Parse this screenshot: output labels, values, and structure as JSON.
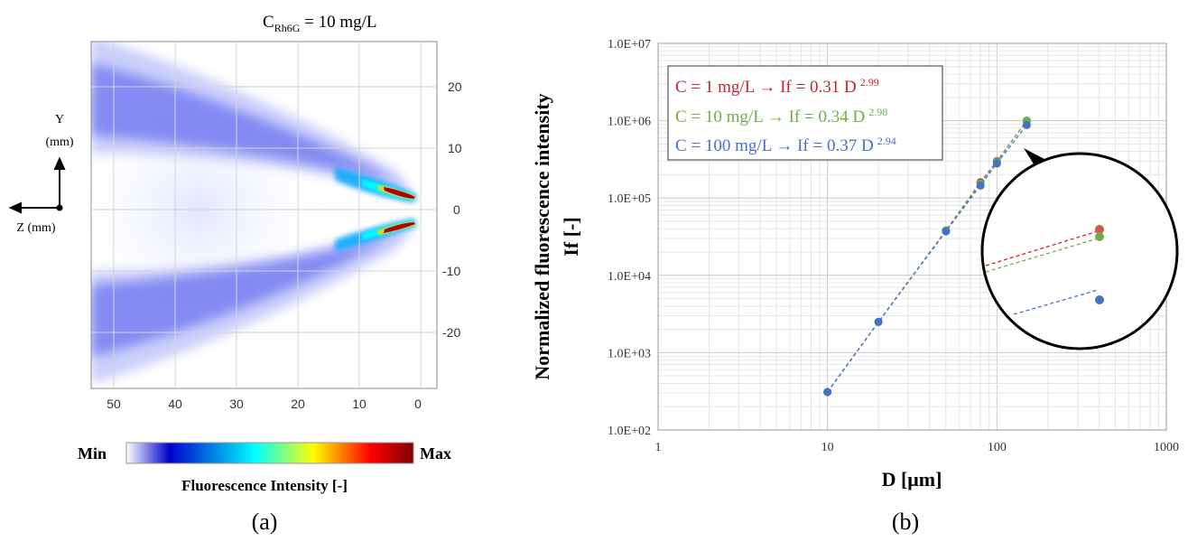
{
  "panel_a": {
    "title_main": "C",
    "title_sub": "Rh6G",
    "title_rest": " = 10 mg/L",
    "axis_y_label_line1": "Y",
    "axis_y_label_line2": "(mm)",
    "axis_z_label": "Z (mm)",
    "colorbar_min": "Min",
    "colorbar_max": "Max",
    "colorbar_label": "Fluorescence Intensity [-]",
    "caption": "(a)",
    "colormap": [
      "#ffffff",
      "#0000cc",
      "#00ffff",
      "#ffff00",
      "#ff0000",
      "#800000"
    ]
  },
  "panel_b": {
    "ylabel_line1": "Normalized fluorescence intensity",
    "ylabel_line2": "If [-]",
    "xlabel": "D [μm]",
    "caption": "(b)"
  },
  "chart_data": [
    {
      "type": "heatmap",
      "title": "C_Rh6G = 10 mg/L",
      "xlabel": "Z (mm)",
      "ylabel": "Y (mm)",
      "x_ticks": [
        "50",
        "40",
        "30",
        "20",
        "10",
        "0"
      ],
      "y_ticks": [
        "20",
        "10",
        "0",
        "-10",
        "-20"
      ],
      "xlim": [
        54,
        -2
      ],
      "ylim": [
        -29,
        27
      ],
      "colorbar": {
        "min_label": "Min",
        "max_label": "Max",
        "label": "Fluorescence Intensity [-]"
      },
      "grid": true
    },
    {
      "type": "scatter",
      "xscale": "log",
      "yscale": "log",
      "xlim": [
        1,
        1000
      ],
      "ylim": [
        100,
        10000000
      ],
      "x_ticks": [
        "1",
        "10",
        "100",
        "1000"
      ],
      "y_ticks": [
        "1.0E+02",
        "1.0E+03",
        "1.0E+04",
        "1.0E+05",
        "1.0E+06",
        "1.0E+07"
      ],
      "xlabel": "D [μm]",
      "ylabel": "Normalized fluorescence intensity If [-]",
      "grid": true,
      "legend_position": "top-left",
      "series": [
        {
          "name": "C = 1 mg/L → If = 0.31 D",
          "exponent": "2.99",
          "color": "#c0282d",
          "x": [
            10,
            20,
            50,
            80,
            100,
            150
          ],
          "y": [
            310,
            2500,
            38000,
            160000,
            300000,
            1000000
          ]
        },
        {
          "name": "C = 10 mg/L → If = 0.34 D",
          "exponent": "2.98",
          "color": "#70ad47",
          "x": [
            10,
            20,
            50,
            80,
            100,
            150
          ],
          "y": [
            310,
            2500,
            38000,
            155000,
            295000,
            1000000
          ]
        },
        {
          "name": "C = 100 mg/L → If = 0.37 D",
          "exponent": "2.94",
          "color": "#4472c4",
          "x": [
            10,
            20,
            50,
            80,
            100,
            150
          ],
          "y": [
            310,
            2500,
            37000,
            145000,
            280000,
            880000
          ]
        }
      ],
      "inset": {
        "description_type": "zoom-circle"
      }
    }
  ]
}
